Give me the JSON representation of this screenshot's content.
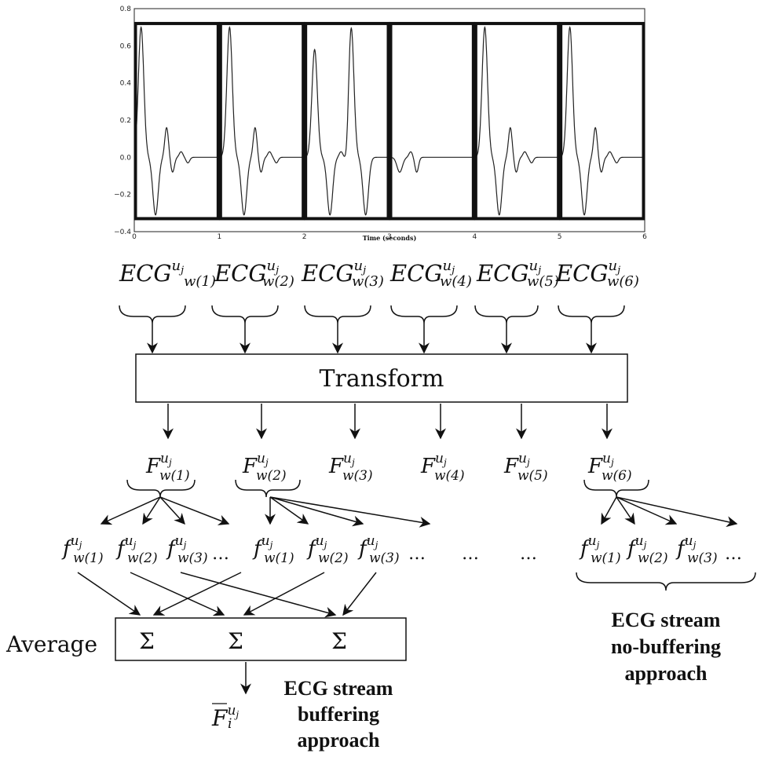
{
  "chart_data": {
    "type": "line",
    "xlabel": "Time (seconds)",
    "ylabel": "",
    "xlim": [
      0,
      6
    ],
    "ylim": [
      -0.4,
      0.8
    ],
    "x_ticks": [
      "0",
      "1",
      "2",
      "3",
      "4",
      "5",
      "6"
    ],
    "y_ticks": [
      "0.8",
      "0.6",
      "0.4",
      "0.2",
      "0.0",
      "−0.2",
      "−0.4"
    ],
    "windows": [
      [
        0,
        1
      ],
      [
        1,
        2
      ],
      [
        2,
        3
      ],
      [
        3,
        4
      ],
      [
        4,
        5
      ],
      [
        5,
        6
      ]
    ],
    "window_y_range": [
      -0.33,
      0.72
    ],
    "beats": [
      {
        "t_up": 0.08,
        "peak": 0.7,
        "t_down": 0.25,
        "trough": -0.31,
        "wave2": 0.16,
        "wave3": 0.03
      },
      {
        "t_up": 1.12,
        "peak": 0.7,
        "t_down": 1.29,
        "trough": -0.31,
        "wave2": 0.16,
        "wave3": 0.03
      },
      {
        "t_up": 2.12,
        "peak": 0.58,
        "t_down": 2.3,
        "trough": -0.31,
        "wave2": 0.03,
        "wave3": 0.0
      },
      {
        "t_up": 2.55,
        "peak": 0.7,
        "t_down": 2.72,
        "trough": -0.31,
        "wave2": 0.0,
        "wave3": 0.0
      },
      {
        "t_up": 3.0,
        "peak": 0.0,
        "t_down": 3.12,
        "trough": -0.08,
        "wave2": 0.03,
        "wave3": 0.0
      },
      {
        "t_up": 4.12,
        "peak": 0.7,
        "t_down": 4.29,
        "trough": -0.31,
        "wave2": 0.16,
        "wave3": 0.03
      },
      {
        "t_up": 5.12,
        "peak": 0.7,
        "t_down": 5.29,
        "trough": -0.31,
        "wave2": 0.16,
        "wave3": 0.03
      }
    ]
  },
  "ecg_labels": [
    {
      "base": "ECG",
      "sup": "u",
      "supsub": "j",
      "sub": "w(1)"
    },
    {
      "base": "ECG",
      "sup": "u",
      "supsub": "j",
      "sub": "w(2)"
    },
    {
      "base": "ECG",
      "sup": "u",
      "supsub": "j",
      "sub": "w(3)"
    },
    {
      "base": "ECG",
      "sup": "u",
      "supsub": "j",
      "sub": "w(4)"
    },
    {
      "base": "ECG",
      "sup": "u",
      "supsub": "j",
      "sub": "w(5)"
    },
    {
      "base": "ECG",
      "sup": "u",
      "supsub": "j",
      "sub": "w(6)"
    }
  ],
  "transform_label": "Transform",
  "F_labels": [
    {
      "base": "F",
      "sup": "u",
      "supsub": "j",
      "sub": "w(1)"
    },
    {
      "base": "F",
      "sup": "u",
      "supsub": "j",
      "sub": "w(2)"
    },
    {
      "base": "F",
      "sup": "u",
      "supsub": "j",
      "sub": "w(3)"
    },
    {
      "base": "F",
      "sup": "u",
      "supsub": "j",
      "sub": "w(4)"
    },
    {
      "base": "F",
      "sup": "u",
      "supsub": "j",
      "sub": "w(5)"
    },
    {
      "base": "F",
      "sup": "u",
      "supsub": "j",
      "sub": "w(6)"
    }
  ],
  "f_labels": [
    {
      "base": "f",
      "sup": "u",
      "supsub": "j",
      "sub": "w(1)"
    },
    {
      "base": "f",
      "sup": "u",
      "supsub": "j",
      "sub": "w(2)"
    },
    {
      "base": "f",
      "sup": "u",
      "supsub": "j",
      "sub": "w(3)"
    },
    {
      "base": "f",
      "sup": "u",
      "supsub": "j",
      "sub": "w(1)"
    },
    {
      "base": "f",
      "sup": "u",
      "supsub": "j",
      "sub": "w(2)"
    },
    {
      "base": "f",
      "sup": "u",
      "supsub": "j",
      "sub": "w(3)"
    },
    {
      "base": "f",
      "sup": "u",
      "supsub": "j",
      "sub": "w(1)"
    },
    {
      "base": "f",
      "sup": "u",
      "supsub": "j",
      "sub": "w(2)"
    },
    {
      "base": "f",
      "sup": "u",
      "supsub": "j",
      "sub": "w(3)"
    }
  ],
  "ellipsis": "…",
  "average_label": "Average",
  "sigma": "Σ",
  "result_label": {
    "base": "F",
    "sup": "u",
    "supsub": "j",
    "sub": "i"
  },
  "buffering_caption": [
    "ECG stream",
    "buffering",
    "approach"
  ],
  "nobuffering_caption": [
    "ECG stream",
    "no-buffering",
    "approach"
  ]
}
